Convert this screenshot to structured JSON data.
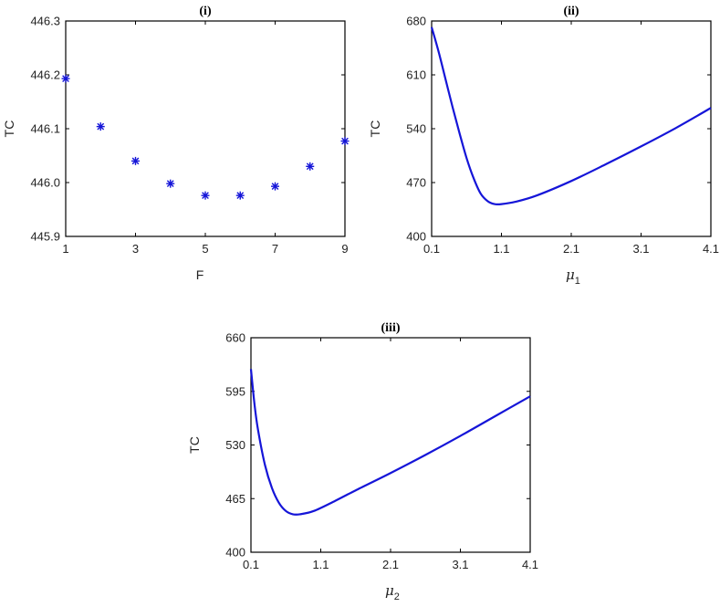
{
  "colors": {
    "series": "#1515d8",
    "axis": "#000000",
    "text": "#222222"
  },
  "chart_data": [
    {
      "type": "scatter",
      "title": "(i)",
      "xlabel": "F",
      "ylabel": "TC",
      "xlim": [
        1,
        9
      ],
      "ylim": [
        445.9,
        446.3
      ],
      "xticks": [
        "1",
        "3",
        "5",
        "7",
        "9"
      ],
      "xtick_values": [
        1,
        3,
        5,
        7,
        9
      ],
      "yticks": [
        "445.9",
        "446.0",
        "446.1",
        "446.2",
        "446.3"
      ],
      "ytick_values": [
        445.9,
        446.0,
        446.1,
        446.2,
        446.3
      ],
      "marker": "asterisk",
      "points": [
        {
          "x": 1,
          "y": 446.193
        },
        {
          "x": 2,
          "y": 446.104
        },
        {
          "x": 3,
          "y": 446.04
        },
        {
          "x": 4,
          "y": 445.998
        },
        {
          "x": 5,
          "y": 445.976
        },
        {
          "x": 6,
          "y": 445.976
        },
        {
          "x": 7,
          "y": 445.993
        },
        {
          "x": 8,
          "y": 446.03
        },
        {
          "x": 9,
          "y": 446.077
        }
      ]
    },
    {
      "type": "line",
      "title": "(ii)",
      "xlabel_symbol": "μ",
      "xlabel_sub": "1",
      "ylabel": "TC",
      "xlim": [
        0.1,
        4.1
      ],
      "ylim": [
        400,
        680
      ],
      "xticks": [
        "0.1",
        "1.1",
        "2.1",
        "3.1",
        "4.1"
      ],
      "xtick_values": [
        0.1,
        1.1,
        2.1,
        3.1,
        4.1
      ],
      "yticks": [
        "400",
        "470",
        "540",
        "610",
        "680"
      ],
      "ytick_values": [
        400,
        470,
        540,
        610,
        680
      ],
      "points": [
        {
          "x": 0.1,
          "y": 672
        },
        {
          "x": 0.2,
          "y": 640
        },
        {
          "x": 0.3,
          "y": 604
        },
        {
          "x": 0.4,
          "y": 568
        },
        {
          "x": 0.5,
          "y": 534
        },
        {
          "x": 0.6,
          "y": 502
        },
        {
          "x": 0.7,
          "y": 476
        },
        {
          "x": 0.8,
          "y": 456
        },
        {
          "x": 0.9,
          "y": 446
        },
        {
          "x": 1.0,
          "y": 442
        },
        {
          "x": 1.1,
          "y": 442
        },
        {
          "x": 1.3,
          "y": 445
        },
        {
          "x": 1.6,
          "y": 453
        },
        {
          "x": 2.1,
          "y": 472
        },
        {
          "x": 2.6,
          "y": 494
        },
        {
          "x": 3.1,
          "y": 517
        },
        {
          "x": 3.6,
          "y": 541
        },
        {
          "x": 4.1,
          "y": 567
        }
      ]
    },
    {
      "type": "line",
      "title": "(iii)",
      "xlabel_symbol": "μ",
      "xlabel_sub": "2",
      "ylabel": "TC",
      "xlim": [
        0.1,
        4.1
      ],
      "ylim": [
        400,
        660
      ],
      "xticks": [
        "0.1",
        "1.1",
        "2.1",
        "3.1",
        "4.1"
      ],
      "xtick_values": [
        0.1,
        1.1,
        2.1,
        3.1,
        4.1
      ],
      "yticks": [
        "400",
        "465",
        "530",
        "595",
        "660"
      ],
      "ytick_values": [
        400,
        465,
        530,
        595,
        660
      ],
      "points": [
        {
          "x": 0.1,
          "y": 622
        },
        {
          "x": 0.15,
          "y": 580
        },
        {
          "x": 0.2,
          "y": 549
        },
        {
          "x": 0.3,
          "y": 506
        },
        {
          "x": 0.4,
          "y": 478
        },
        {
          "x": 0.5,
          "y": 460
        },
        {
          "x": 0.6,
          "y": 450
        },
        {
          "x": 0.7,
          "y": 446
        },
        {
          "x": 0.8,
          "y": 446
        },
        {
          "x": 1.0,
          "y": 450
        },
        {
          "x": 1.3,
          "y": 462
        },
        {
          "x": 1.6,
          "y": 475
        },
        {
          "x": 2.1,
          "y": 496
        },
        {
          "x": 2.6,
          "y": 518
        },
        {
          "x": 3.1,
          "y": 541
        },
        {
          "x": 3.6,
          "y": 565
        },
        {
          "x": 4.1,
          "y": 589
        }
      ]
    }
  ]
}
